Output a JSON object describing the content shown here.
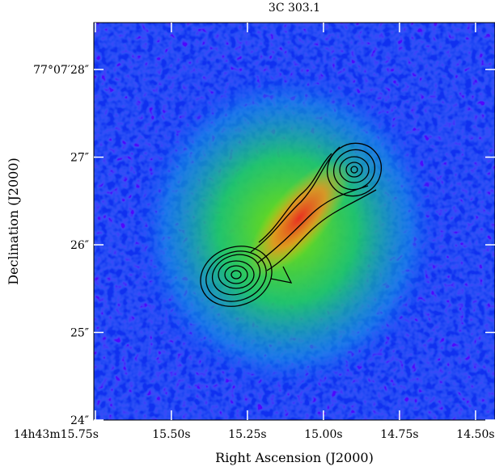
{
  "chart_data": {
    "type": "image",
    "title": "3C 303.1",
    "x_label": "Right Ascension (J2000)",
    "y_label": "Declination (J2000)",
    "xlim": [
      15.755,
      14.436
    ],
    "ylim": [
      24,
      28.535
    ],
    "xticks": [
      {
        "value": 15.75,
        "label": "14h43m15.75s"
      },
      {
        "value": 15.5,
        "label": "15.50s"
      },
      {
        "value": 15.25,
        "label": "15.25s"
      },
      {
        "value": 15.0,
        "label": "15.00s"
      },
      {
        "value": 14.75,
        "label": "14.75s"
      },
      {
        "value": 14.5,
        "label": "14.50s"
      }
    ],
    "yticks": [
      {
        "value": 24,
        "label": "24″"
      },
      {
        "value": 25,
        "label": "25″"
      },
      {
        "value": 26,
        "label": "26″"
      },
      {
        "value": 27,
        "label": "27″"
      },
      {
        "value": 28,
        "label": "77°07′28″"
      }
    ]
  }
}
